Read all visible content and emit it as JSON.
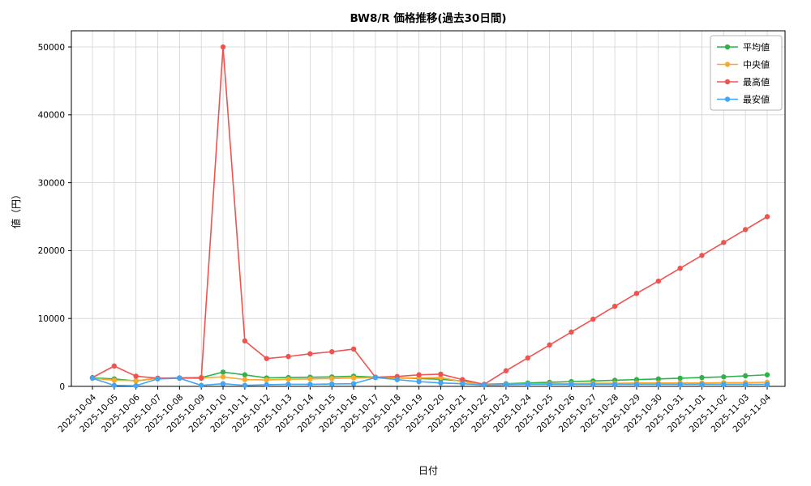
{
  "window": {
    "background": "#ffffff"
  },
  "chart_data": {
    "type": "line",
    "title": "BW8/R 価格推移(過去30日間)",
    "xlabel": "日付",
    "ylabel": "値（円）",
    "ylim": [
      0,
      50000
    ],
    "yticks": [
      0,
      10000,
      20000,
      30000,
      40000,
      50000
    ],
    "grid": true,
    "legend_position": "upper right",
    "categories": [
      "2025-10-04",
      "2025-10-05",
      "2025-10-06",
      "2025-10-07",
      "2025-10-08",
      "2025-10-09",
      "2025-10-10",
      "2025-10-11",
      "2025-10-12",
      "2025-10-13",
      "2025-10-14",
      "2025-10-15",
      "2025-10-16",
      "2025-10-17",
      "2025-10-18",
      "2025-10-19",
      "2025-10-20",
      "2025-10-21",
      "2025-10-22",
      "2025-10-23",
      "2025-10-24",
      "2025-10-25",
      "2025-10-26",
      "2025-10-27",
      "2025-10-28",
      "2025-10-29",
      "2025-10-30",
      "2025-10-31",
      "2025-11-01",
      "2025-11-02",
      "2025-11-03",
      "2025-11-04"
    ],
    "series": [
      {
        "key": "average",
        "name": "平均値",
        "color": "#2db24c",
        "values": [
          1250,
          1100,
          800,
          1200,
          1250,
          1300,
          2100,
          1700,
          1250,
          1300,
          1350,
          1400,
          1500,
          1350,
          1250,
          1150,
          1050,
          800,
          300,
          400,
          500,
          600,
          700,
          800,
          900,
          1000,
          1100,
          1200,
          1300,
          1400,
          1550,
          1700
        ]
      },
      {
        "key": "median",
        "name": "中央値",
        "color": "#ffa726",
        "values": [
          1200,
          900,
          850,
          1150,
          1200,
          1250,
          1400,
          1000,
          950,
          1050,
          1100,
          1150,
          1250,
          1300,
          1200,
          1250,
          1300,
          700,
          250,
          300,
          350,
          400,
          400,
          450,
          450,
          500,
          500,
          500,
          500,
          550,
          550,
          600
        ]
      },
      {
        "key": "max",
        "name": "最高値",
        "color": "#ef5350",
        "values": [
          1300,
          3000,
          1500,
          1200,
          1250,
          1200,
          50000,
          6700,
          4100,
          4400,
          4800,
          5100,
          5500,
          1350,
          1450,
          1700,
          1800,
          1000,
          300,
          2300,
          4200,
          6100,
          8000,
          9900,
          11800,
          13700,
          15500,
          17400,
          19300,
          21200,
          23100,
          25000
        ]
      },
      {
        "key": "min",
        "name": "最安値",
        "color": "#42a5f5",
        "values": [
          1200,
          150,
          100,
          1100,
          1200,
          150,
          400,
          150,
          250,
          300,
          300,
          350,
          400,
          1300,
          1000,
          700,
          500,
          400,
          200,
          250,
          300,
          300,
          300,
          300,
          300,
          300,
          300,
          300,
          300,
          300,
          300,
          300
        ]
      }
    ]
  }
}
